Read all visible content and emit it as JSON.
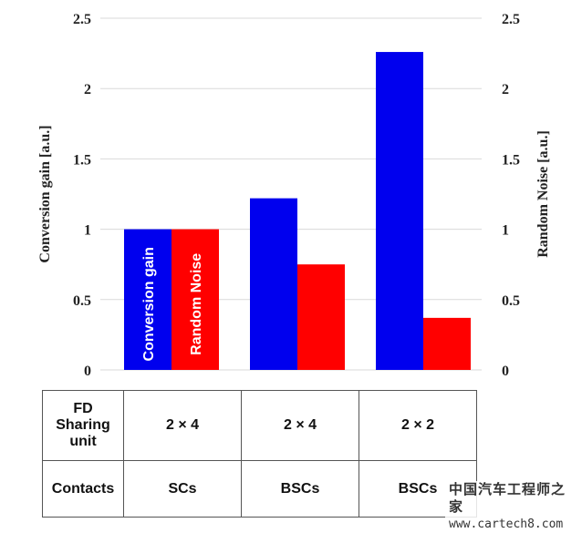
{
  "chart_data": {
    "type": "bar",
    "categories": [
      "SCs 2×4",
      "BSCs 2×4",
      "BSCs 2×2"
    ],
    "series": [
      {
        "name": "Conversion gain",
        "color": "#0000ee",
        "values": [
          1.0,
          1.22,
          2.26
        ],
        "axis": "left"
      },
      {
        "name": "Random Noise",
        "color": "#ff0000",
        "values": [
          1.0,
          0.75,
          0.37
        ],
        "axis": "right"
      }
    ],
    "ylabel_left": "Conversion gain [a.u.]",
    "ylabel_right": "Random Noise [a.u.]",
    "ylim": [
      0,
      2.5
    ],
    "y_ticks": [
      "0",
      "0.5",
      "1",
      "1.5",
      "2",
      "2.5"
    ],
    "y_tick_values": [
      0,
      0.5,
      1,
      1.5,
      2,
      2.5
    ],
    "grid": true,
    "bar_labels": [
      "Conversion gain",
      "Random Noise"
    ]
  },
  "table": {
    "row1_header": "FD Sharing unit",
    "row1_header_lines": [
      "FD",
      "Sharing",
      "unit"
    ],
    "row1_values": [
      "2 × 4",
      "2 × 4",
      "2 × 2"
    ],
    "row2_header": "Contacts",
    "row2_values": [
      "SCs",
      "BSCs",
      "BSCs"
    ]
  },
  "watermark": {
    "brand": "中国汽车工程师之家",
    "url": "www.cartech8.com"
  }
}
